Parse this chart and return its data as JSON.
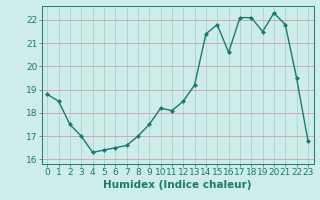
{
  "x": [
    0,
    1,
    2,
    3,
    4,
    5,
    6,
    7,
    8,
    9,
    10,
    11,
    12,
    13,
    14,
    15,
    16,
    17,
    18,
    19,
    20,
    21,
    22,
    23
  ],
  "y": [
    18.8,
    18.5,
    17.5,
    17.0,
    16.3,
    16.4,
    16.5,
    16.6,
    17.0,
    17.5,
    18.2,
    18.1,
    18.5,
    19.2,
    21.4,
    21.8,
    20.6,
    22.1,
    22.1,
    21.5,
    22.3,
    21.8,
    19.5,
    16.8
  ],
  "line_color": "#1a7a6e",
  "marker": "D",
  "marker_size": 2.0,
  "linewidth": 1.0,
  "xlabel": "Humidex (Indice chaleur)",
  "ylim": [
    15.8,
    22.6
  ],
  "xlim": [
    -0.5,
    23.5
  ],
  "yticks": [
    16,
    17,
    18,
    19,
    20,
    21,
    22
  ],
  "xticks": [
    0,
    1,
    2,
    3,
    4,
    5,
    6,
    7,
    8,
    9,
    10,
    11,
    12,
    13,
    14,
    15,
    16,
    17,
    18,
    19,
    20,
    21,
    22,
    23
  ],
  "bg_color": "#ceecea",
  "hgrid_color": "#d4a0a0",
  "vgrid_color": "#aad4d0",
  "axis_color": "#1a7a6e",
  "xlabel_fontsize": 7.5,
  "tick_fontsize": 6.5
}
